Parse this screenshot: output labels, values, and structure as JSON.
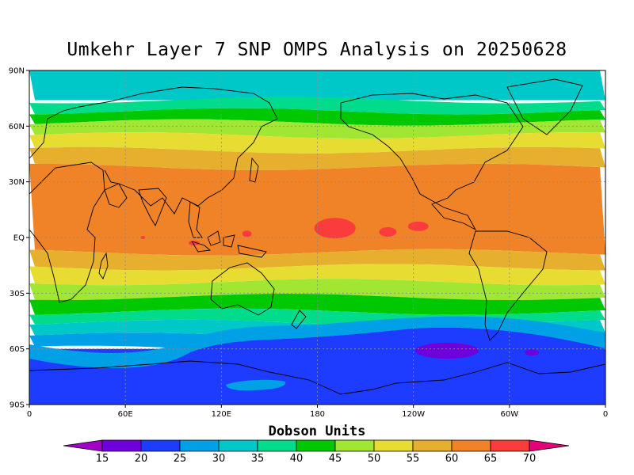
{
  "title": "Umkehr Layer 7 SNP OMPS Analysis on 20250628",
  "units_label": "Dobson Units",
  "lat_ticks": [
    {
      "label": "90N",
      "lat": 90
    },
    {
      "label": "60N",
      "lat": 60
    },
    {
      "label": "30N",
      "lat": 30
    },
    {
      "label": "EQ",
      "lat": 0
    },
    {
      "label": "30S",
      "lat": -30
    },
    {
      "label": "60S",
      "lat": -60
    },
    {
      "label": "90S",
      "lat": -90
    }
  ],
  "lon_ticks": [
    {
      "label": "0",
      "lon": 0
    },
    {
      "label": "60E",
      "lon": 60
    },
    {
      "label": "120E",
      "lon": 120
    },
    {
      "label": "180",
      "lon": 180
    },
    {
      "label": "120W",
      "lon": 240
    },
    {
      "label": "60W",
      "lon": 300
    },
    {
      "label": "0",
      "lon": 360
    }
  ],
  "colorbar": {
    "labels": [
      "15",
      "20",
      "25",
      "30",
      "35",
      "40",
      "45",
      "50",
      "55",
      "60",
      "65",
      "70"
    ],
    "colors": [
      "#a000c8",
      "#6e00dc",
      "#1e3cff",
      "#00a0e6",
      "#00c8c8",
      "#00dc8c",
      "#00c800",
      "#a0e632",
      "#e6dc32",
      "#e6af2d",
      "#f08228",
      "#fa3c3c",
      "#e6007a"
    ]
  },
  "map": {
    "projection": "cylindrical-equidistant",
    "lon_range": [
      0,
      360
    ],
    "lat_range": [
      -90,
      90
    ],
    "bands": [
      {
        "lat_top": 90,
        "lat_bottom": 74,
        "value": "30-35",
        "color": "#00c8c8"
      },
      {
        "lat_top": 74,
        "lat_bottom": 68,
        "value": "35-40",
        "color": "#00dc8c"
      },
      {
        "lat_top": 68,
        "lat_bottom": 62,
        "value": "40-45",
        "color": "#00c800"
      },
      {
        "lat_top": 62,
        "lat_bottom": 55,
        "value": "45-50",
        "color": "#a0e632"
      },
      {
        "lat_top": 55,
        "lat_bottom": 47,
        "value": "50-55",
        "color": "#e6dc32"
      },
      {
        "lat_top": 47,
        "lat_bottom": 38,
        "value": "55-60",
        "color": "#e6af2d"
      },
      {
        "lat_top": 38,
        "lat_bottom": -8,
        "value": "60-65",
        "color": "#f08228"
      },
      {
        "lat_top": -8,
        "lat_bottom": -16,
        "value": "55-60",
        "color": "#e6af2d"
      },
      {
        "lat_top": -16,
        "lat_bottom": -24,
        "value": "50-55",
        "color": "#e6dc32"
      },
      {
        "lat_top": -24,
        "lat_bottom": -32,
        "value": "45-50",
        "color": "#a0e632"
      },
      {
        "lat_top": -32,
        "lat_bottom": -40,
        "value": "40-45",
        "color": "#00c800"
      },
      {
        "lat_top": -40,
        "lat_bottom": -46,
        "value": "35-40",
        "color": "#00dc8c"
      },
      {
        "lat_top": -46,
        "lat_bottom": -53,
        "value": "30-35",
        "color": "#00c8c8"
      },
      {
        "lat_top": -53,
        "lat_bottom": -60,
        "value": "25-30",
        "color": "#00a0e6"
      },
      {
        "lat_top": -60,
        "lat_bottom": -90,
        "value": "20-25",
        "color": "#1e3cff"
      }
    ],
    "maxima": [
      {
        "name": "pacific-max-1",
        "lon": 191,
        "lat": 5,
        "value": "65-70",
        "color": "#fa3c3c"
      },
      {
        "name": "pacific-max-2",
        "lon": 224,
        "lat": 3,
        "value": "65-70",
        "color": "#fa3c3c"
      },
      {
        "name": "pacific-max-3",
        "lon": 243,
        "lat": 6,
        "value": "65-70",
        "color": "#fa3c3c"
      },
      {
        "name": "indonesia-max-1",
        "lon": 136,
        "lat": 2,
        "value": "65-70",
        "color": "#fa3c3c"
      },
      {
        "name": "indonesia-max-2",
        "lon": 103,
        "lat": -3,
        "value": "65-70",
        "color": "#fa3c3c"
      },
      {
        "name": "africa-max",
        "lon": 71,
        "lat": 0,
        "value": "65-70",
        "color": "#fa3c3c"
      }
    ],
    "minima": [
      {
        "name": "south-pacific-min-1",
        "lon": 261,
        "lat": -61,
        "value": "15-20",
        "color": "#6e00dc"
      },
      {
        "name": "south-pacific-min-2",
        "lon": 314,
        "lat": -62,
        "value": "15-20",
        "color": "#6e00dc"
      }
    ]
  }
}
